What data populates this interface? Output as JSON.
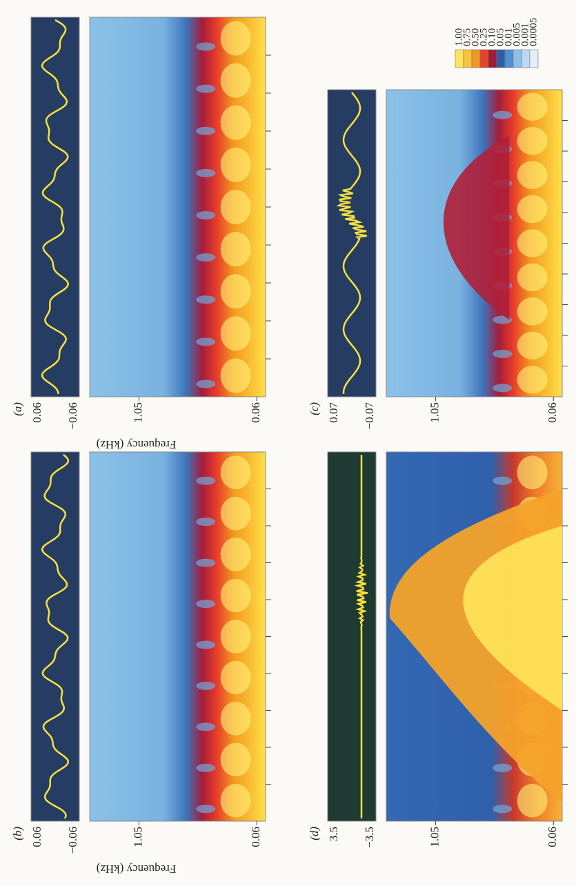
{
  "colorbar": {
    "labels": [
      "1.00",
      "0.75",
      "0.50",
      "0.25",
      "0.10",
      "0.05",
      "0.01",
      "0.005",
      "0.001",
      "0.0005"
    ]
  },
  "axis_label": "Frequency (kHz)",
  "panels": [
    {
      "label": "(a)",
      "signal_ticks": [
        "0.06",
        "−0.06"
      ],
      "frequency_ticks": [
        "1.05",
        "0.06"
      ]
    },
    {
      "label": "(b)",
      "signal_ticks": [
        "0.06",
        "−0.06"
      ],
      "frequency_ticks": [
        "1.05",
        "0.06"
      ]
    },
    {
      "label": "(c)",
      "signal_ticks": [
        "0.07",
        "−0.07"
      ],
      "frequency_ticks": [
        "1.05",
        "0.06"
      ]
    },
    {
      "label": "(d)",
      "signal_ticks": [
        "3.5",
        "−3.5"
      ],
      "frequency_ticks": [
        "1.05",
        "0.06"
      ]
    }
  ]
}
